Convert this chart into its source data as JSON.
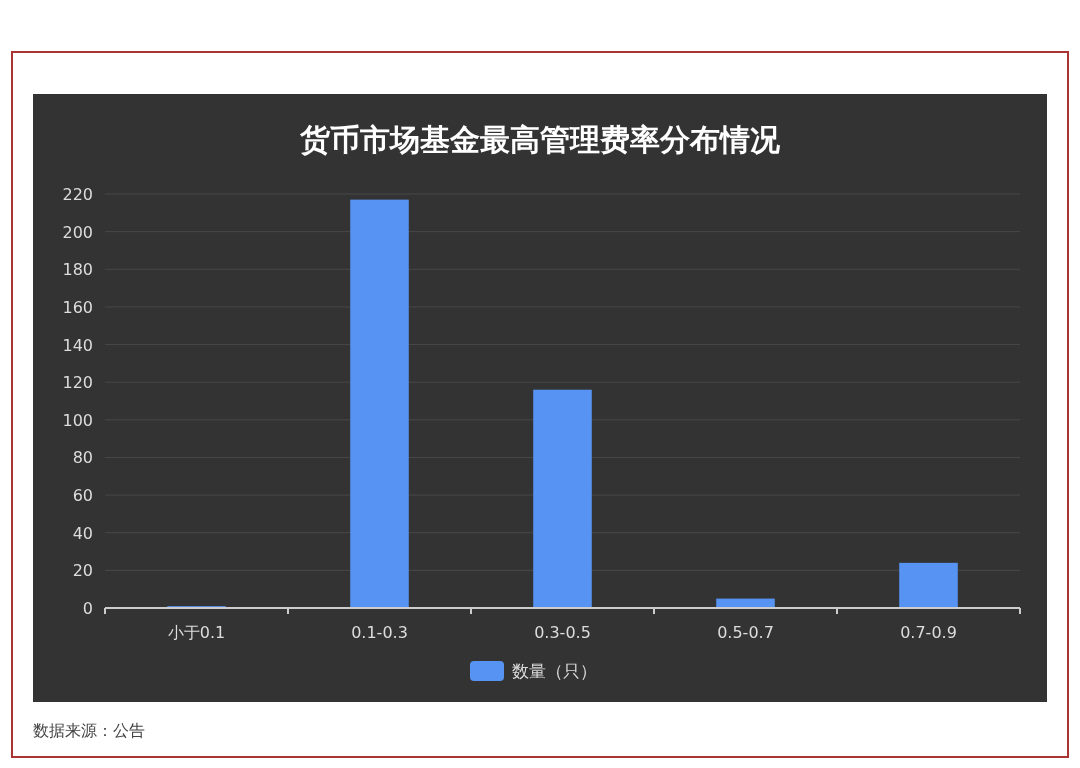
{
  "chart_data": {
    "type": "bar",
    "title": "货币市场基金最高管理费率分布情况",
    "categories": [
      "小于0.1",
      "0.1-0.3",
      "0.3-0.5",
      "0.5-0.7",
      "0.7-0.9"
    ],
    "series": [
      {
        "name": "数量（只）",
        "color": "#5793f3",
        "values": [
          1,
          217,
          116,
          5,
          24
        ]
      }
    ],
    "ylim": [
      0,
      220
    ],
    "yticks": [
      0,
      20,
      40,
      60,
      80,
      100,
      120,
      140,
      160,
      180,
      200,
      220
    ],
    "grid": "y",
    "legend": "bottom",
    "annotations": [
      "数据来源：公告"
    ]
  }
}
